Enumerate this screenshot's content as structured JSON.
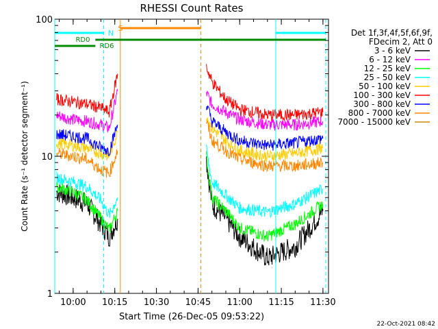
{
  "chart_data": {
    "type": "line",
    "title": "RHESSI Count Rates",
    "xlabel": "Start Time (26-Dec-05 09:53:22)",
    "ylabel": "Count Rate (s⁻¹ detector segment⁻¹)",
    "y_scale": "log",
    "ylim": [
      1,
      100
    ],
    "x_unit": "minutes after 09:53:22",
    "xlim_time": [
      "09:53:22",
      "11:32:00"
    ],
    "x_ticks": [
      "10:00",
      "10:15",
      "10:30",
      "10:45",
      "11:00",
      "11:15",
      "11:30"
    ],
    "y_ticks": [
      "1",
      "10",
      "100"
    ],
    "legend_header": [
      "Det 1f,3f,4f,5f,6f,9f,",
      "FDecim 2, Att 0"
    ],
    "legend_placement": "right",
    "x_data_times": [
      "09:54",
      "10:00",
      "10:05",
      "10:10",
      "10:13",
      "10:16",
      "10:17",
      "10:48",
      "10:50",
      "10:55",
      "11:00",
      "11:10",
      "11:20",
      "11:30"
    ],
    "series": [
      {
        "name": "3 - 6 keV",
        "color": "#000000",
        "values": [
          5.5,
          5.0,
          4.5,
          3.2,
          2.6,
          3.5,
          null,
          9.5,
          4.5,
          3.5,
          2.6,
          1.8,
          2.2,
          4.0
        ]
      },
      {
        "name": "6 - 12 keV",
        "color": "#ff00ff",
        "values": [
          20,
          18.5,
          18,
          17,
          16,
          30,
          null,
          29,
          24,
          21,
          18.5,
          17,
          17,
          18
        ]
      },
      {
        "name": "12 - 25 keV",
        "color": "#00ff00",
        "values": [
          6.0,
          5.5,
          4.8,
          3.5,
          2.9,
          4.0,
          null,
          10,
          5.0,
          4.0,
          3.0,
          2.6,
          3.2,
          4.5
        ]
      },
      {
        "name": "25 - 50 keV",
        "color": "#00ffff",
        "values": [
          7.0,
          6.5,
          6.0,
          4.8,
          3.7,
          5.0,
          null,
          11,
          6.5,
          5.2,
          4.2,
          3.9,
          4.5,
          5.8
        ]
      },
      {
        "name": "50 - 100 keV",
        "color": "#ffcc00",
        "values": [
          12.5,
          12,
          11.5,
          10.5,
          10,
          15,
          null,
          20,
          16,
          13,
          11,
          10,
          10.5,
          11.5
        ]
      },
      {
        "name": "100 - 300 keV",
        "color": "#ff0000",
        "values": [
          26,
          25,
          24,
          22.5,
          21,
          40,
          null,
          45,
          35,
          26,
          22,
          20,
          20,
          21
        ]
      },
      {
        "name": "300 - 800 keV",
        "color": "#0000ff",
        "values": [
          14.5,
          14,
          13.5,
          11.5,
          11,
          17,
          null,
          24,
          18,
          15,
          13,
          12,
          12.5,
          13.5
        ]
      },
      {
        "name": "800 - 7000 keV",
        "color": "#ff8800",
        "values": [
          10.5,
          10,
          9.5,
          8.0,
          7.5,
          11,
          null,
          18,
          13,
          11,
          9.5,
          8.5,
          8.5,
          9.0
        ]
      },
      {
        "name": "7000 - 15000 keV",
        "color": "#cc8800",
        "values": [
          null,
          null,
          null,
          null,
          null,
          null,
          null,
          null,
          null,
          null,
          null,
          null,
          null,
          null
        ]
      }
    ],
    "annotations": [
      {
        "label": "S",
        "color": "#ff8800"
      },
      {
        "label": "N",
        "color": "#00ffff"
      },
      {
        "label": "RD0",
        "color": "#008800"
      },
      {
        "label": "RD6",
        "color": "#008800"
      }
    ],
    "vertical_markers": [
      {
        "time": "10:17",
        "color": "#ff8800",
        "style": "solid"
      },
      {
        "time": "10:46",
        "color": "#ff8800",
        "style": "dashed"
      },
      {
        "time": "10:11",
        "color": "#00ffff",
        "style": "dashed"
      },
      {
        "time": "11:13",
        "color": "#00ffff",
        "style": "solid"
      },
      {
        "time": "11:31",
        "color": "#00ffff",
        "style": "dashed"
      },
      {
        "time": "09:53:22",
        "color": "#00ffff",
        "style": "solid"
      }
    ],
    "status_bars": [
      {
        "label": "N",
        "color": "#00ffff",
        "segments": [
          [
            "09:53:22",
            "10:11"
          ],
          [
            "11:13",
            "11:31"
          ]
        ]
      },
      {
        "label": "S",
        "color": "#ff8800",
        "segments": [
          [
            "10:17",
            "10:46"
          ]
        ]
      },
      {
        "label": "RD0",
        "color": "#008800",
        "segments": [
          [
            "09:53:22",
            "10:08"
          ]
        ]
      },
      {
        "label": "RD6",
        "color": "#008800",
        "segments": [
          [
            "10:08",
            "10:46"
          ],
          [
            "10:46",
            "10:53"
          ],
          [
            "10:53",
            "11:31"
          ]
        ]
      }
    ],
    "grid": false
  },
  "footer": {
    "timestamp": "22-Oct-2021 08:42"
  }
}
